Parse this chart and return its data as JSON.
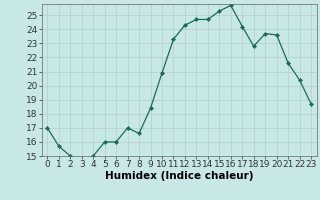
{
  "x": [
    0,
    1,
    2,
    3,
    4,
    5,
    6,
    7,
    8,
    9,
    10,
    11,
    12,
    13,
    14,
    15,
    16,
    17,
    18,
    19,
    20,
    21,
    22,
    23
  ],
  "y": [
    17.0,
    15.7,
    15.0,
    14.8,
    15.0,
    16.0,
    16.0,
    17.0,
    16.6,
    18.4,
    20.9,
    23.3,
    24.3,
    24.7,
    24.7,
    25.3,
    25.7,
    24.2,
    22.8,
    23.7,
    23.6,
    21.6,
    20.4,
    18.7
  ],
  "xlabel": "Humidex (Indice chaleur)",
  "ylim": [
    15,
    25.8
  ],
  "xlim": [
    -0.5,
    23.5
  ],
  "yticks": [
    15,
    16,
    17,
    18,
    19,
    20,
    21,
    22,
    23,
    24,
    25
  ],
  "xticks": [
    0,
    1,
    2,
    3,
    4,
    5,
    6,
    7,
    8,
    9,
    10,
    11,
    12,
    13,
    14,
    15,
    16,
    17,
    18,
    19,
    20,
    21,
    22,
    23
  ],
  "line_color": "#1a6b5a",
  "marker_color": "#1a6b5a",
  "bg_color": "#c8e8e8",
  "grid_color": "#b8d0d0",
  "xlabel_fontsize": 7.5,
  "tick_fontsize": 6.5
}
